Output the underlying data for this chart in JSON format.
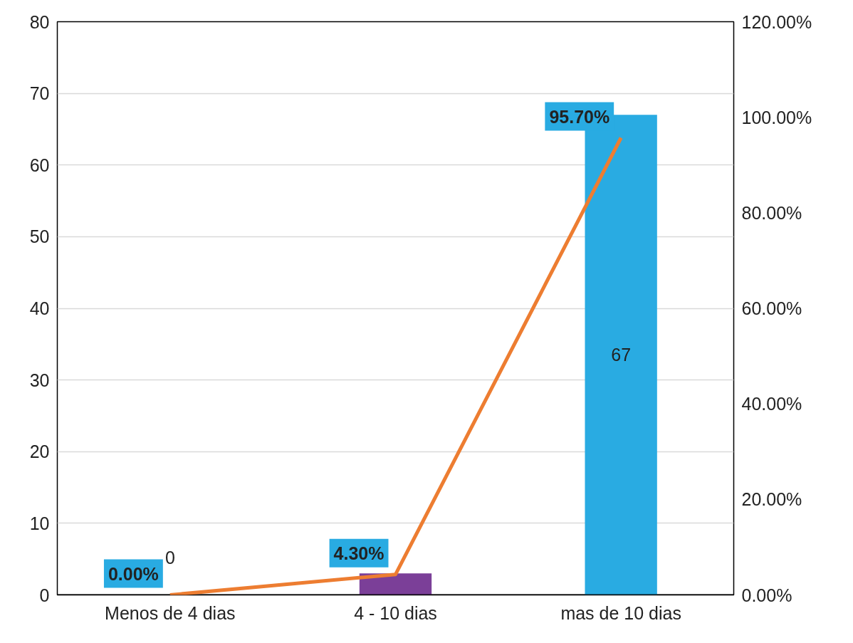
{
  "chart_data": {
    "type": "bar",
    "categories": [
      "Menos de 4 dias",
      "4 - 10 dias",
      "mas de 10 dias"
    ],
    "series": [
      {
        "colors": [
          "#29abe2",
          "#7b3f98",
          "#29abe2"
        ],
        "values": [
          0,
          3,
          67
        ],
        "value_labels": [
          "0",
          null,
          "67"
        ]
      },
      {
        "type": "line",
        "axis": "y2",
        "color": "#ed7d31",
        "values": [
          0,
          4.3,
          95.7
        ],
        "value_labels": [
          "0.00%",
          "4.30%",
          "95.70%"
        ]
      }
    ],
    "ylim": [
      0,
      80
    ],
    "yticks": [
      0,
      10,
      20,
      30,
      40,
      50,
      60,
      70,
      80
    ],
    "y2lim": [
      0,
      120
    ],
    "y2ticks": [
      {
        "value": 0,
        "label": "0.00%"
      },
      {
        "value": 20,
        "label": "20.00%"
      },
      {
        "value": 40,
        "label": "40.00%"
      },
      {
        "value": 60,
        "label": "60.00%"
      },
      {
        "value": 80,
        "label": "80.00%"
      },
      {
        "value": 100,
        "label": "100.00%"
      },
      {
        "value": 120,
        "label": "120.00%"
      }
    ],
    "grid": "y"
  }
}
